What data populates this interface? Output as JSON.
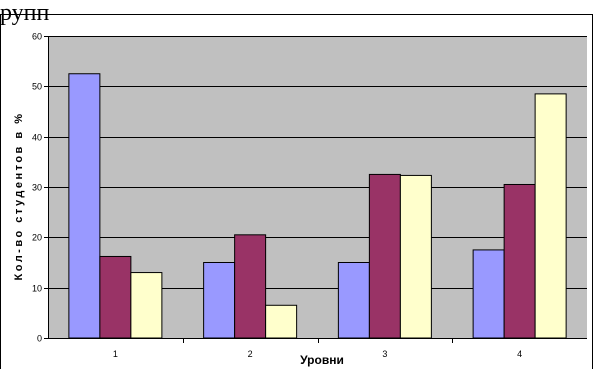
{
  "caption": "                               рупп",
  "chart_data": {
    "type": "bar",
    "title": "",
    "xlabel": "Уровни",
    "ylabel": "Кол-во студентов в %",
    "ylim": [
      0,
      60
    ],
    "yticks": [
      0,
      10,
      20,
      30,
      40,
      50,
      60
    ],
    "grid": true,
    "legend": "none",
    "categories": [
      "1",
      "2",
      "3",
      "4"
    ],
    "series": [
      {
        "color": "#9999ff",
        "values": [
          52.5,
          15,
          15,
          17.5
        ]
      },
      {
        "color": "#993366",
        "values": [
          16.2,
          20.5,
          32.5,
          30.5
        ]
      },
      {
        "color": "#ffffcc",
        "values": [
          13,
          6.5,
          32.3,
          48.5
        ]
      }
    ],
    "plot_background": "#c0c0c0"
  }
}
